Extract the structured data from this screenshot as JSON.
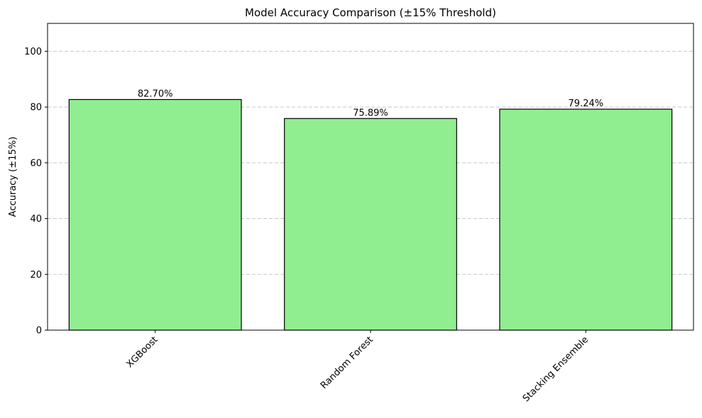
{
  "chart_data": {
    "type": "bar",
    "title": "Model Accuracy Comparison (±15% Threshold)",
    "xlabel": "",
    "ylabel": "Accuracy (±15%)",
    "categories": [
      "XGBoost",
      "Random Forest",
      "Stacking Ensemble"
    ],
    "values": [
      82.7,
      75.89,
      79.24
    ],
    "value_labels": [
      "82.70%",
      "75.89%",
      "79.24%"
    ],
    "ylim": [
      0,
      110
    ],
    "yticks": [
      0,
      20,
      40,
      60,
      80,
      100
    ],
    "ytick_labels": [
      "0",
      "20",
      "40",
      "60",
      "80",
      "100"
    ],
    "grid": "y-dashed",
    "xtick_rotation_deg": 45,
    "colors": {
      "bar_fill": "#90EE90",
      "bar_edge": "#000000",
      "grid": "#c8c8c8"
    }
  }
}
